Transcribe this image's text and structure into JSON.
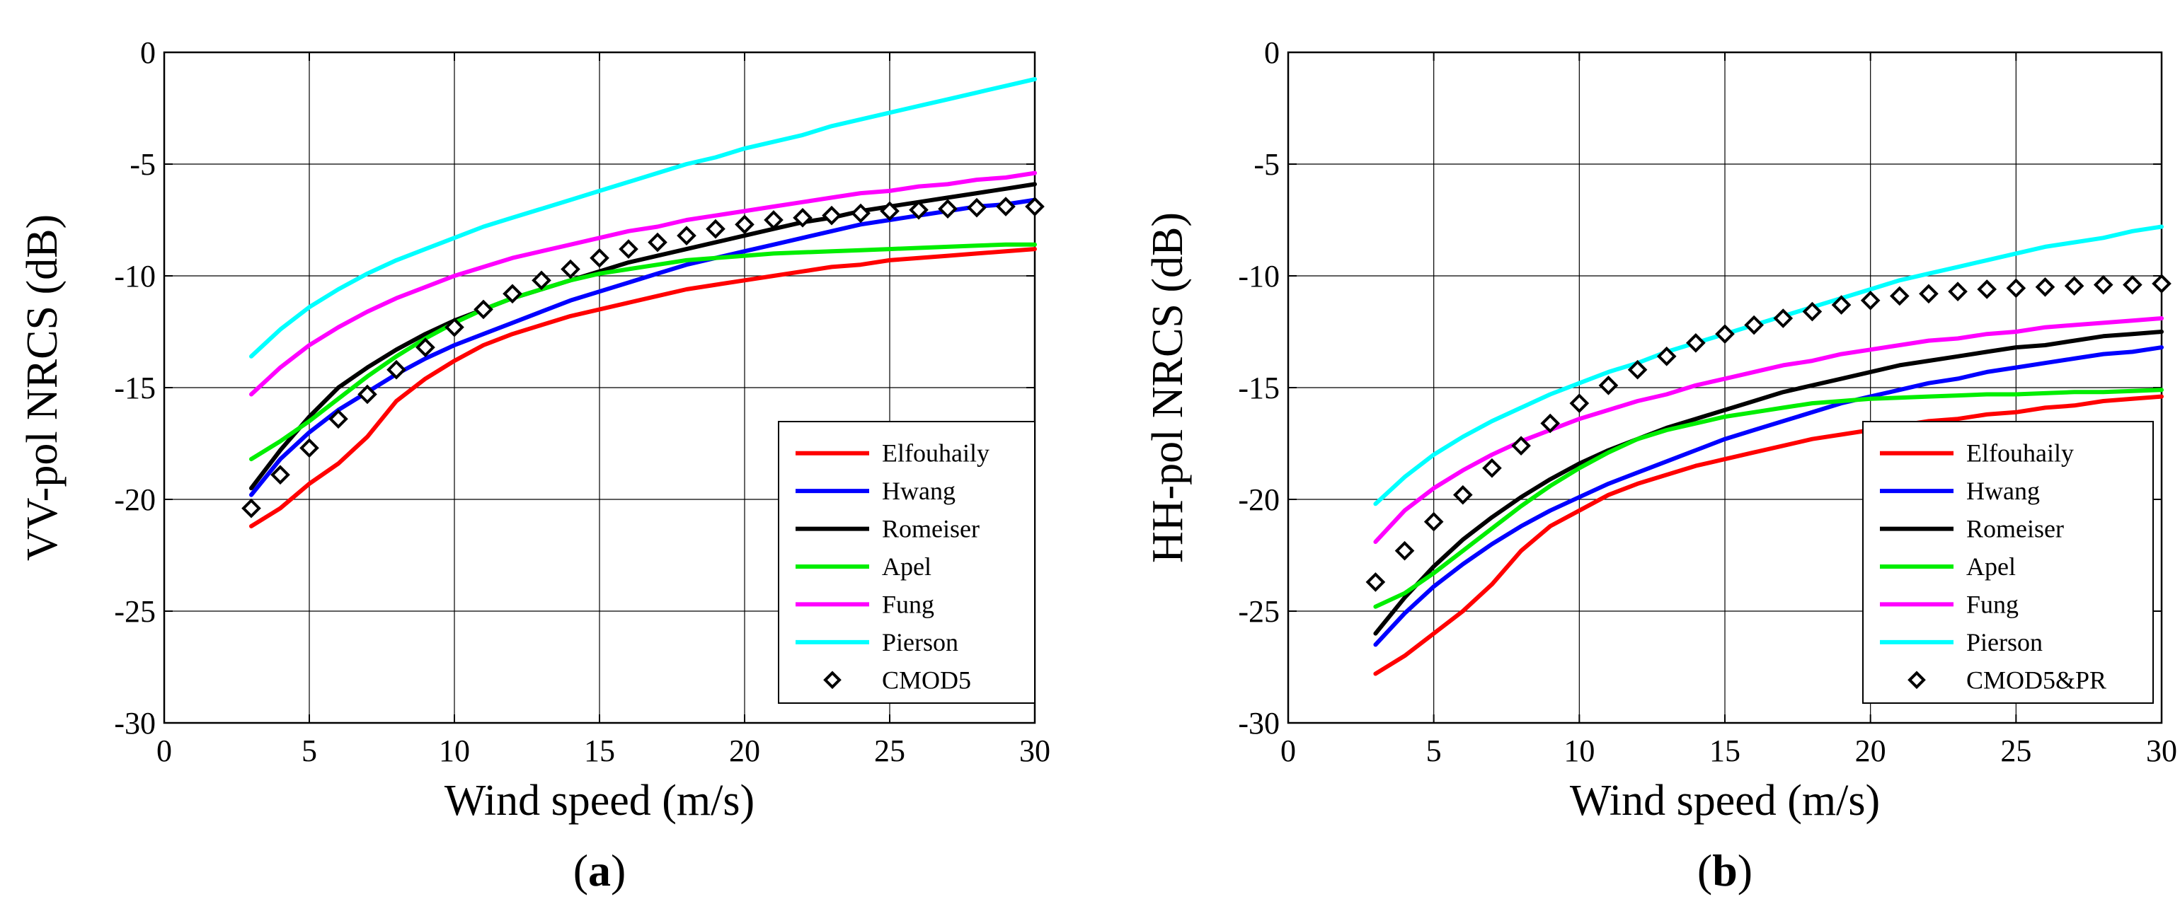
{
  "chart_data": [
    {
      "type": "line",
      "panel_label": "(a)",
      "panel_letter": "a",
      "xlabel": "Wind speed (m/s)",
      "ylabel": "VV-pol NRCS (dB)",
      "xlim": [
        0,
        30
      ],
      "ylim": [
        -30,
        0
      ],
      "xticks": [
        0,
        5,
        10,
        15,
        20,
        25,
        30
      ],
      "yticks": [
        0,
        -5,
        -10,
        -15,
        -20,
        -25,
        -30
      ],
      "grid": true,
      "legend_position": "bottom-right",
      "x": [
        3,
        4,
        5,
        6,
        7,
        8,
        9,
        10,
        11,
        12,
        13,
        14,
        15,
        16,
        17,
        18,
        19,
        20,
        21,
        22,
        23,
        24,
        25,
        26,
        27,
        28,
        29,
        30
      ],
      "series": [
        {
          "name": "Elfouhaily",
          "color": "#ff0000",
          "values": [
            -21.2,
            -20.4,
            -19.3,
            -18.4,
            -17.2,
            -15.6,
            -14.6,
            -13.8,
            -13.1,
            -12.6,
            -12.2,
            -11.8,
            -11.5,
            -11.2,
            -10.9,
            -10.6,
            -10.4,
            -10.2,
            -10.0,
            -9.8,
            -9.6,
            -9.5,
            -9.3,
            -9.2,
            -9.1,
            -9.0,
            -8.9,
            -8.8
          ]
        },
        {
          "name": "Hwang",
          "color": "#0000ff",
          "values": [
            -19.8,
            -18.2,
            -17.0,
            -16.0,
            -15.2,
            -14.4,
            -13.7,
            -13.1,
            -12.6,
            -12.1,
            -11.6,
            -11.1,
            -10.7,
            -10.3,
            -9.9,
            -9.5,
            -9.2,
            -8.9,
            -8.6,
            -8.3,
            -8.0,
            -7.7,
            -7.5,
            -7.3,
            -7.1,
            -6.9,
            -6.8,
            -6.6
          ]
        },
        {
          "name": "Romeiser",
          "color": "#000000",
          "values": [
            -19.5,
            -17.8,
            -16.3,
            -15.0,
            -14.1,
            -13.3,
            -12.6,
            -12.0,
            -11.5,
            -11.0,
            -10.6,
            -10.2,
            -9.8,
            -9.4,
            -9.1,
            -8.8,
            -8.5,
            -8.2,
            -7.9,
            -7.6,
            -7.4,
            -7.1,
            -6.9,
            -6.7,
            -6.5,
            -6.3,
            -6.1,
            -5.9
          ]
        },
        {
          "name": "Apel",
          "color": "#00ee00",
          "values": [
            -18.2,
            -17.4,
            -16.5,
            -15.5,
            -14.5,
            -13.6,
            -12.8,
            -12.1,
            -11.5,
            -11.0,
            -10.6,
            -10.2,
            -9.9,
            -9.7,
            -9.5,
            -9.3,
            -9.2,
            -9.1,
            -9.0,
            -8.95,
            -8.9,
            -8.85,
            -8.8,
            -8.75,
            -8.7,
            -8.65,
            -8.6,
            -8.6
          ]
        },
        {
          "name": "Fung",
          "color": "#ff00ff",
          "values": [
            -15.3,
            -14.1,
            -13.1,
            -12.3,
            -11.6,
            -11.0,
            -10.5,
            -10.0,
            -9.6,
            -9.2,
            -8.9,
            -8.6,
            -8.3,
            -8.0,
            -7.8,
            -7.5,
            -7.3,
            -7.1,
            -6.9,
            -6.7,
            -6.5,
            -6.3,
            -6.2,
            -6.0,
            -5.9,
            -5.7,
            -5.6,
            -5.4
          ]
        },
        {
          "name": "Pierson",
          "color": "#00ffff",
          "values": [
            -13.6,
            -12.4,
            -11.4,
            -10.6,
            -9.9,
            -9.3,
            -8.8,
            -8.3,
            -7.8,
            -7.4,
            -7.0,
            -6.6,
            -6.2,
            -5.8,
            -5.4,
            -5.0,
            -4.7,
            -4.3,
            -4.0,
            -3.7,
            -3.3,
            -3.0,
            -2.7,
            -2.4,
            -2.1,
            -1.8,
            -1.5,
            -1.2
          ]
        },
        {
          "name": "CMOD5",
          "marker": "diamond",
          "color": "#000000",
          "values": [
            -20.4,
            -18.9,
            -17.7,
            -16.4,
            -15.3,
            -14.2,
            -13.2,
            -12.3,
            -11.5,
            -10.8,
            -10.2,
            -9.7,
            -9.2,
            -8.8,
            -8.5,
            -8.2,
            -7.9,
            -7.7,
            -7.5,
            -7.4,
            -7.3,
            -7.2,
            -7.1,
            -7.05,
            -7.0,
            -6.95,
            -6.9,
            -6.9
          ]
        }
      ]
    },
    {
      "type": "line",
      "panel_label": "(b)",
      "panel_letter": "b",
      "xlabel": "Wind speed (m/s)",
      "ylabel": "HH-pol NRCS (dB)",
      "xlim": [
        0,
        30
      ],
      "ylim": [
        -30,
        0
      ],
      "xticks": [
        0,
        5,
        10,
        15,
        20,
        25,
        30
      ],
      "yticks": [
        0,
        -5,
        -10,
        -15,
        -20,
        -25,
        -30
      ],
      "grid": true,
      "legend_position": "bottom-right",
      "x": [
        3,
        4,
        5,
        6,
        7,
        8,
        9,
        10,
        11,
        12,
        13,
        14,
        15,
        16,
        17,
        18,
        19,
        20,
        21,
        22,
        23,
        24,
        25,
        26,
        27,
        28,
        29,
        30
      ],
      "series": [
        {
          "name": "Elfouhaily",
          "color": "#ff0000",
          "values": [
            -27.8,
            -27.0,
            -26.0,
            -25.0,
            -23.8,
            -22.3,
            -21.2,
            -20.5,
            -19.8,
            -19.3,
            -18.9,
            -18.5,
            -18.2,
            -17.9,
            -17.6,
            -17.3,
            -17.1,
            -16.9,
            -16.7,
            -16.5,
            -16.4,
            -16.2,
            -16.1,
            -15.9,
            -15.8,
            -15.6,
            -15.5,
            -15.4
          ]
        },
        {
          "name": "Hwang",
          "color": "#0000ff",
          "values": [
            -26.5,
            -25.1,
            -23.9,
            -22.9,
            -22.0,
            -21.2,
            -20.5,
            -19.9,
            -19.3,
            -18.8,
            -18.3,
            -17.8,
            -17.3,
            -16.9,
            -16.5,
            -16.1,
            -15.7,
            -15.4,
            -15.1,
            -14.8,
            -14.6,
            -14.3,
            -14.1,
            -13.9,
            -13.7,
            -13.5,
            -13.4,
            -13.2
          ]
        },
        {
          "name": "Romeiser",
          "color": "#000000",
          "values": [
            -26.0,
            -24.4,
            -23.0,
            -21.8,
            -20.8,
            -19.9,
            -19.1,
            -18.4,
            -17.8,
            -17.3,
            -16.8,
            -16.4,
            -16.0,
            -15.6,
            -15.2,
            -14.9,
            -14.6,
            -14.3,
            -14.0,
            -13.8,
            -13.6,
            -13.4,
            -13.2,
            -13.1,
            -12.9,
            -12.7,
            -12.6,
            -12.5
          ]
        },
        {
          "name": "Apel",
          "color": "#00ee00",
          "values": [
            -24.8,
            -24.2,
            -23.3,
            -22.3,
            -21.3,
            -20.3,
            -19.4,
            -18.6,
            -17.9,
            -17.3,
            -16.9,
            -16.6,
            -16.3,
            -16.1,
            -15.9,
            -15.7,
            -15.6,
            -15.5,
            -15.45,
            -15.4,
            -15.35,
            -15.3,
            -15.3,
            -15.25,
            -15.2,
            -15.2,
            -15.15,
            -15.1
          ]
        },
        {
          "name": "Fung",
          "color": "#ff00ff",
          "values": [
            -21.9,
            -20.5,
            -19.5,
            -18.7,
            -18.0,
            -17.4,
            -16.9,
            -16.4,
            -16.0,
            -15.6,
            -15.3,
            -14.9,
            -14.6,
            -14.3,
            -14.0,
            -13.8,
            -13.5,
            -13.3,
            -13.1,
            -12.9,
            -12.8,
            -12.6,
            -12.5,
            -12.3,
            -12.2,
            -12.1,
            -12.0,
            -11.9
          ]
        },
        {
          "name": "Pierson",
          "color": "#00ffff",
          "values": [
            -20.2,
            -19.0,
            -18.0,
            -17.2,
            -16.5,
            -15.9,
            -15.3,
            -14.8,
            -14.3,
            -13.9,
            -13.4,
            -13.0,
            -12.6,
            -12.2,
            -11.8,
            -11.4,
            -11.0,
            -10.6,
            -10.2,
            -9.9,
            -9.6,
            -9.3,
            -9.0,
            -8.7,
            -8.5,
            -8.3,
            -8.0,
            -7.8
          ]
        },
        {
          "name": "CMOD5&PR",
          "marker": "diamond",
          "color": "#000000",
          "values": [
            -23.7,
            -22.3,
            -21.0,
            -19.8,
            -18.6,
            -17.6,
            -16.6,
            -15.7,
            -14.9,
            -14.2,
            -13.6,
            -13.0,
            -12.6,
            -12.2,
            -11.9,
            -11.6,
            -11.3,
            -11.1,
            -10.9,
            -10.8,
            -10.7,
            -10.6,
            -10.55,
            -10.5,
            -10.45,
            -10.4,
            -10.4,
            -10.35
          ]
        }
      ]
    }
  ]
}
